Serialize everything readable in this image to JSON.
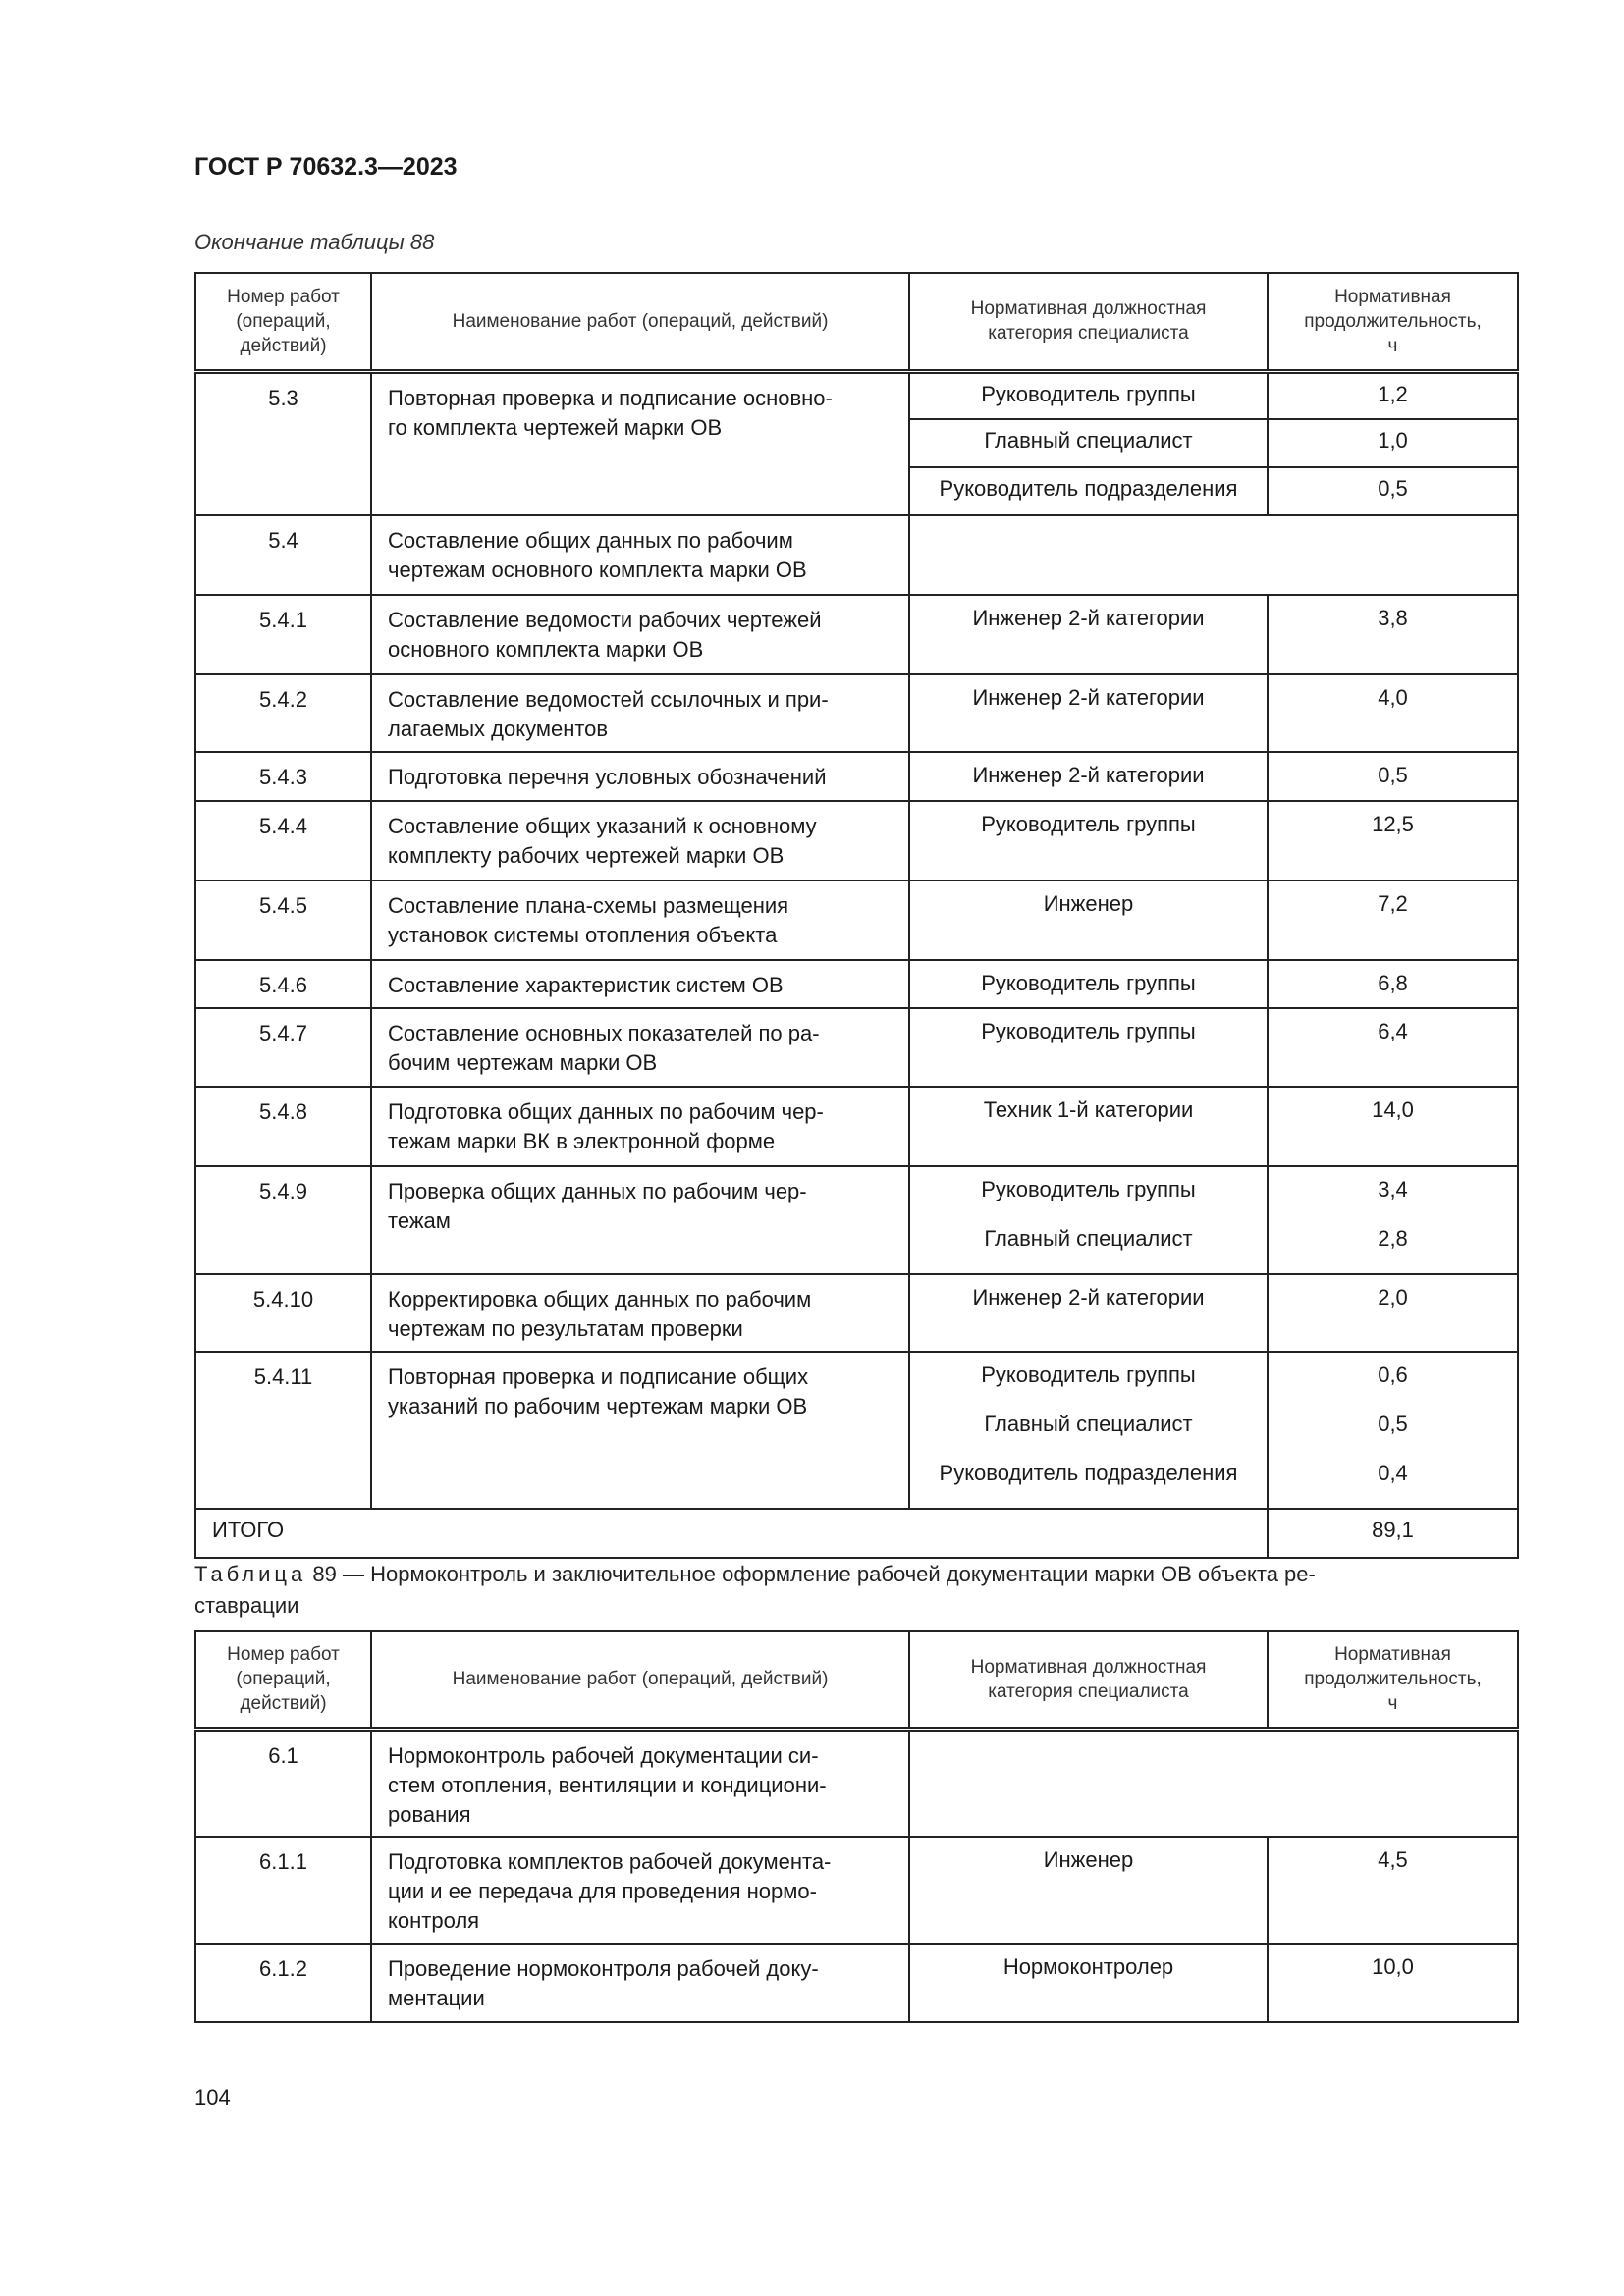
{
  "header": {
    "doc_title": "ГОСТ Р 70632.3—2023"
  },
  "table88": {
    "caption": "Окончание таблицы 88",
    "columns": [
      "Номер работ\n(операций,\nдействий)",
      "Наименование работ (операций, действий)",
      "Нормативная должностная\nкатегория специалиста",
      "Нормативная\nпродолжительность,\nч"
    ],
    "rows": [
      {
        "num": "5.3",
        "name": "Повторная проверка и подписание основно-\nго комплекта чертежей марки ОВ",
        "split": true,
        "items": [
          {
            "role": "Руководитель группы",
            "hours": "1,2"
          },
          {
            "role": "Главный специалист",
            "hours": "1,0"
          },
          {
            "role": "Руководитель подразделения",
            "hours": "0,5"
          }
        ]
      },
      {
        "num": "5.4",
        "name": "Составление общих данных по рабочим\nчертежам основного комплекта марки ОВ",
        "merged_empty": true,
        "items": []
      },
      {
        "num": "5.4.1",
        "name": "Составление ведомости рабочих чертежей\nосновного комплекта марки ОВ",
        "items": [
          {
            "role": "Инженер 2-й категории",
            "hours": "3,8"
          }
        ]
      },
      {
        "num": "5.4.2",
        "name": "Составление ведомостей ссылочных и при-\nлагаемых документов",
        "items": [
          {
            "role": "Инженер 2-й категории",
            "hours": "4,0"
          }
        ]
      },
      {
        "num": "5.4.3",
        "name": "Подготовка перечня условных обозначений",
        "items": [
          {
            "role": "Инженер 2-й категории",
            "hours": "0,5"
          }
        ]
      },
      {
        "num": "5.4.4",
        "name": "Составление общих указаний к основному\nкомплекту рабочих чертежей марки ОВ",
        "items": [
          {
            "role": "Руководитель группы",
            "hours": "12,5"
          }
        ]
      },
      {
        "num": "5.4.5",
        "name": "Составление плана-схемы размещения\nустановок системы отопления объекта",
        "items": [
          {
            "role": "Инженер",
            "hours": "7,2"
          }
        ]
      },
      {
        "num": "5.4.6",
        "name": "Составление характеристик систем ОВ",
        "items": [
          {
            "role": "Руководитель группы",
            "hours": "6,8"
          }
        ]
      },
      {
        "num": "5.4.7",
        "name": "Составление основных показателей по ра-\nбочим чертежам марки ОВ",
        "items": [
          {
            "role": "Руководитель группы",
            "hours": "6,4"
          }
        ]
      },
      {
        "num": "5.4.8",
        "name": "Подготовка общих данных по рабочим чер-\nтежам марки ВК в электронной форме",
        "items": [
          {
            "role": "Техник 1-й категории",
            "hours": "14,0"
          }
        ]
      },
      {
        "num": "5.4.9",
        "name": "Проверка общих данных по рабочим чер-\nтежам",
        "items": [
          {
            "role": "Руководитель группы",
            "hours": "3,4"
          },
          {
            "role": "Главный специалист",
            "hours": "2,8"
          }
        ]
      },
      {
        "num": "5.4.10",
        "name": "Корректировка общих данных по рабочим\nчертежам по результатам проверки",
        "items": [
          {
            "role": "Инженер 2-й категории",
            "hours": "2,0"
          }
        ]
      },
      {
        "num": "5.4.11",
        "name": "Повторная проверка и подписание общих\nуказаний по рабочим чертежам марки ОВ",
        "items": [
          {
            "role": "Руководитель группы",
            "hours": "0,6"
          },
          {
            "role": "Главный специалист",
            "hours": "0,5"
          },
          {
            "role": "Руководитель подразделения",
            "hours": "0,4"
          }
        ]
      }
    ],
    "total": {
      "label": "ИТОГО",
      "value": "89,1"
    }
  },
  "table89": {
    "caption_prefix": "Таблица",
    "caption": "89 — Нормоконтроль и заключительное оформление рабочей документации марки ОВ объекта ре-\nставрации",
    "columns": [
      "Номер работ\n(операций,\nдействий)",
      "Наименование работ (операций, действий)",
      "Нормативная должностная\nкатегория специалиста",
      "Нормативная\nпродолжительность,\nч"
    ],
    "rows": [
      {
        "num": "6.1",
        "name": "Нормоконтроль рабочей документации си-\nстем отопления, вентиляции и кондициони-\nрования",
        "merged_empty": true,
        "items": []
      },
      {
        "num": "6.1.1",
        "name": "Подготовка комплектов рабочей документа-\nции и ее передача для проведения нормо-\nконтроля",
        "items": [
          {
            "role": "Инженер",
            "hours": "4,5"
          }
        ]
      },
      {
        "num": "6.1.2",
        "name": "Проведение нормоконтроля рабочей доку-\nментации",
        "items": [
          {
            "role": "Нормоконтролер",
            "hours": "10,0"
          }
        ]
      }
    ]
  },
  "footer": {
    "page_number": "104"
  }
}
